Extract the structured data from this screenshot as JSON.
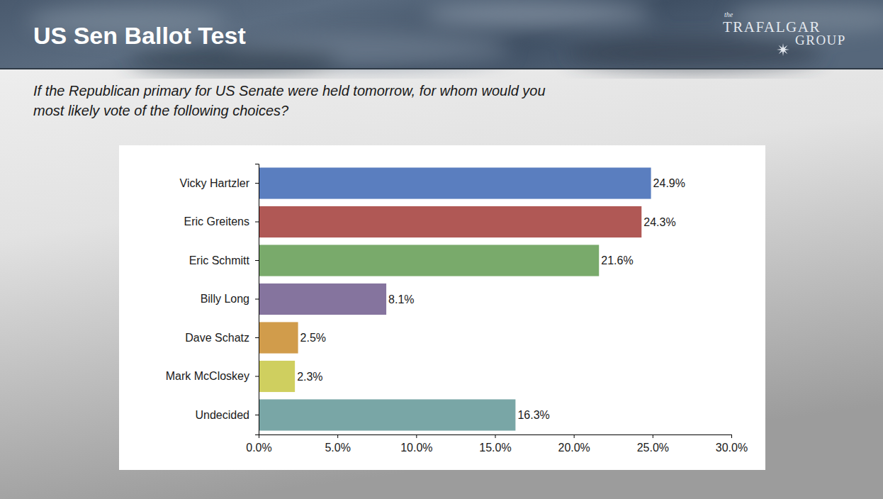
{
  "chart_data": {
    "type": "bar",
    "orientation": "horizontal",
    "title": "US Sen Ballot Test",
    "subtitle": "If the Republican primary for US Senate were held tomorrow, for whom would you most likely vote of the following choices?",
    "annotations": [
      "the",
      "TRAFALGAR",
      "GROUP"
    ],
    "categories": [
      "Vicky Hartzler",
      "Eric Greitens",
      "Eric Schmitt",
      "Billy Long",
      "Dave Schatz",
      "Mark McCloskey",
      "Undecided"
    ],
    "values": [
      24.9,
      24.3,
      21.6,
      8.1,
      2.5,
      2.3,
      16.3
    ],
    "value_labels": [
      "24.9%",
      "24.3%",
      "21.6%",
      "8.1%",
      "2.5%",
      "2.3%",
      "16.3%"
    ],
    "data_labels": true,
    "colors": [
      "#5a7ebf",
      "#b05855",
      "#79aa6b",
      "#85749e",
      "#d19c4b",
      "#cfcf5f",
      "#79a6a6"
    ],
    "xlim": [
      0,
      30
    ],
    "xticks": [
      {
        "value": 0,
        "label": "0.0%"
      },
      {
        "value": 5,
        "label": "5.0%"
      },
      {
        "value": 10,
        "label": "10.0%"
      },
      {
        "value": 15,
        "label": "15.0%"
      },
      {
        "value": 20,
        "label": "20.0%"
      },
      {
        "value": 25,
        "label": "25.0%"
      },
      {
        "value": 30,
        "label": "30.0%"
      }
    ],
    "grid": false
  }
}
